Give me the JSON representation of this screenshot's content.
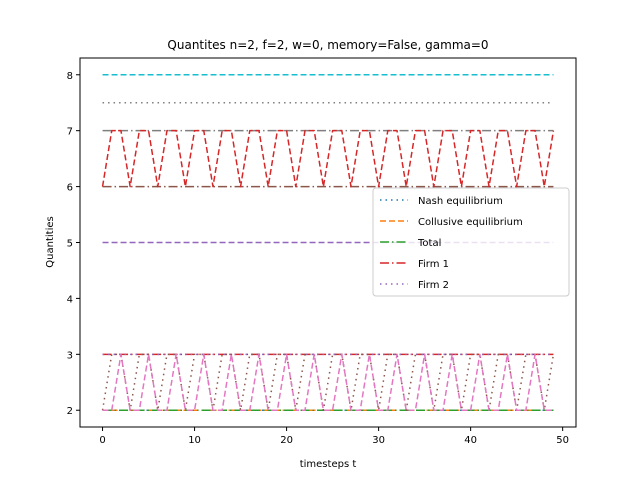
{
  "chart_data": {
    "type": "line",
    "title": "Quantites n=2, f=2, w=0, memory=False, gamma=0",
    "xlabel": "timesteps t",
    "ylabel": "Quantities",
    "xlim": [
      -2.45,
      51.45
    ],
    "ylim": [
      1.7,
      8.3
    ],
    "xticks": [
      0,
      10,
      20,
      30,
      40,
      50
    ],
    "yticks": [
      2,
      3,
      4,
      5,
      6,
      7,
      8
    ],
    "grid": false,
    "legend_position": "center-right",
    "legend": [
      {
        "label": "Nash equilibrium",
        "color": "#1f77b4",
        "style": "dotted"
      },
      {
        "label": "Collusive equilibrium",
        "color": "#ff7f0e",
        "style": "dashed"
      },
      {
        "label": "Total",
        "color": "#2ca02c",
        "style": "dashdot"
      },
      {
        "label": "Firm 1",
        "color": "#d62728",
        "style": "dashdot"
      },
      {
        "label": "Firm 2",
        "color": "#9467bd",
        "style": "dotted"
      }
    ],
    "series": [
      {
        "color": "#1f77b4",
        "style": "dotted",
        "x": [
          0,
          49
        ],
        "y": [
          2,
          2
        ]
      },
      {
        "color": "#ff7f0e",
        "style": "dashed",
        "x": [
          0,
          49
        ],
        "y": [
          2,
          2
        ]
      },
      {
        "color": "#2ca02c",
        "style": "dashdot",
        "x": [
          0,
          49
        ],
        "y": [
          2,
          2
        ]
      },
      {
        "color": "#d62728",
        "style": "dashdot",
        "x": [
          0,
          49
        ],
        "y": [
          3,
          3
        ]
      },
      {
        "color": "#9467bd",
        "style": "dotted",
        "x": [
          0,
          49
        ],
        "y": [
          3,
          3
        ]
      },
      {
        "color": "#8c564b",
        "style": "dotted",
        "x": [
          0,
          1,
          2,
          3,
          4,
          5,
          6,
          7,
          8,
          9,
          10,
          11,
          12,
          13,
          14,
          15,
          16,
          17,
          18,
          19,
          20,
          21,
          22,
          23,
          24,
          25,
          26,
          27,
          28,
          29,
          30,
          31,
          32,
          33,
          34,
          35,
          36,
          37,
          38,
          39,
          40,
          41,
          42,
          43,
          44,
          45,
          46,
          47,
          48,
          49
        ],
        "y": [
          2,
          3,
          3,
          2,
          3,
          3,
          2,
          3,
          3,
          2,
          3,
          3,
          2,
          3,
          3,
          2,
          3,
          3,
          2,
          3,
          3,
          2,
          3,
          3,
          2,
          3,
          3,
          2,
          3,
          3,
          2,
          3,
          3,
          2,
          3,
          3,
          2,
          3,
          3,
          2,
          3,
          3,
          2,
          3,
          3,
          2,
          3,
          3,
          2,
          3
        ]
      },
      {
        "color": "#e377c2",
        "style": "dashed",
        "x": [
          0,
          1,
          2,
          3,
          4,
          5,
          6,
          7,
          8,
          9,
          10,
          11,
          12,
          13,
          14,
          15,
          16,
          17,
          18,
          19,
          20,
          21,
          22,
          23,
          24,
          25,
          26,
          27,
          28,
          29,
          30,
          31,
          32,
          33,
          34,
          35,
          36,
          37,
          38,
          39,
          40,
          41,
          42,
          43,
          44,
          45,
          46,
          47,
          48,
          49
        ],
        "y": [
          2,
          2,
          3,
          2,
          2,
          3,
          2,
          2,
          3,
          2,
          2,
          3,
          2,
          2,
          3,
          2,
          2,
          3,
          2,
          2,
          3,
          2,
          2,
          3,
          2,
          2,
          3,
          2,
          2,
          3,
          2,
          2,
          3,
          2,
          2,
          3,
          2,
          2,
          3,
          2,
          2,
          3,
          2,
          2,
          3,
          2,
          2,
          3,
          2,
          2
        ]
      },
      {
        "color": "#17becf",
        "style": "dashed",
        "x": [
          0,
          49
        ],
        "y": [
          8,
          8
        ]
      },
      {
        "color": "#7f7f7f",
        "style": "dotted",
        "x": [
          0,
          49
        ],
        "y": [
          7.5,
          7.5
        ]
      },
      {
        "color": "#7f7f7f",
        "style": "dashdot",
        "x": [
          0,
          49
        ],
        "y": [
          7,
          7
        ]
      },
      {
        "color": "#8c564b",
        "style": "dashdot",
        "x": [
          0,
          49
        ],
        "y": [
          6,
          6
        ]
      },
      {
        "color": "#9467bd",
        "style": "dashed",
        "x": [
          0,
          49
        ],
        "y": [
          5,
          5
        ]
      },
      {
        "color": "#d62728",
        "style": "dashed",
        "x": [
          0,
          1,
          2,
          3,
          4,
          5,
          6,
          7,
          8,
          9,
          10,
          11,
          12,
          13,
          14,
          15,
          16,
          17,
          18,
          19,
          20,
          21,
          22,
          23,
          24,
          25,
          26,
          27,
          28,
          29,
          30,
          31,
          32,
          33,
          34,
          35,
          36,
          37,
          38,
          39,
          40,
          41,
          42,
          43,
          44,
          45,
          46,
          47,
          48,
          49
        ],
        "y": [
          6,
          7,
          7,
          6,
          7,
          7,
          6,
          7,
          7,
          6,
          7,
          7,
          6,
          7,
          7,
          6,
          7,
          7,
          6,
          7,
          7,
          6,
          7,
          7,
          6,
          7,
          7,
          6,
          7,
          7,
          6,
          7,
          7,
          6,
          7,
          7,
          6,
          7,
          7,
          6,
          7,
          7,
          6,
          7,
          7,
          6,
          7,
          7,
          6,
          7
        ]
      }
    ]
  }
}
